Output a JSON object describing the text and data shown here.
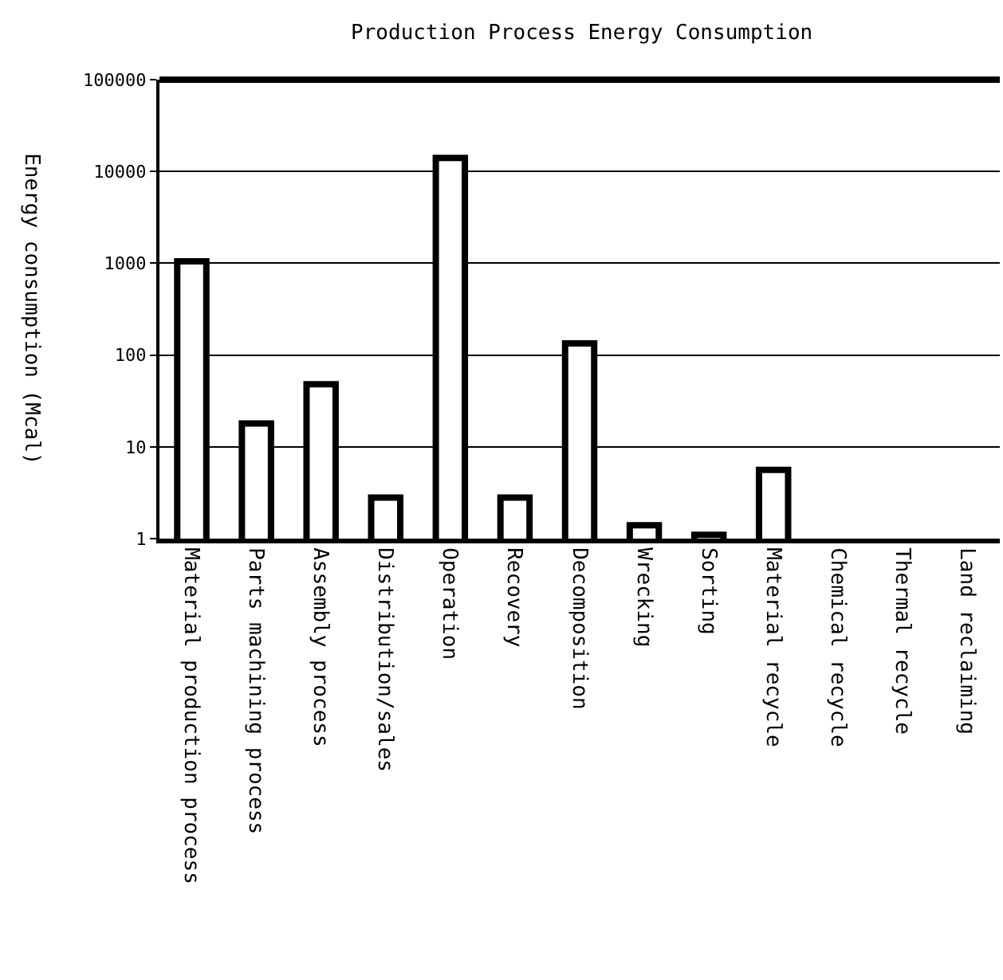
{
  "chart_data": {
    "type": "bar",
    "title": "Production Process Energy Consumption",
    "ylabel": "Energy consumption (Mcal)",
    "categories": [
      "Material production process",
      "Parts machining process",
      "Assembly process",
      "Distribution/sales",
      "Operation",
      "Recovery",
      "Decomposition",
      "Wrecking",
      "Sorting",
      "Material recycle",
      "Chemical recycle",
      "Thermal recycle",
      "Land reclaiming"
    ],
    "values": [
      1050,
      18,
      48,
      2.8,
      14000,
      2.8,
      134,
      1.4,
      1.1,
      5.6,
      null,
      null,
      null
    ],
    "color": "#ffffff",
    "log": true,
    "ylim": [
      1,
      100000
    ],
    "yticks": [
      1,
      10,
      100,
      1000,
      10000,
      100000
    ],
    "grid": "y",
    "legend": false
  }
}
